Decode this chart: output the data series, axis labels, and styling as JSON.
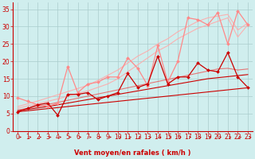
{
  "background_color": "#d0eeee",
  "grid_color": "#aacccc",
  "xlabel": "Vent moyen/en rafales ( km/h )",
  "xlabel_color": "#cc0000",
  "xlabel_fontsize": 6,
  "tick_color": "#cc0000",
  "tick_fontsize": 5.5,
  "xlim": [
    -0.5,
    23.5
  ],
  "ylim": [
    0,
    37
  ],
  "yticks": [
    0,
    5,
    10,
    15,
    20,
    25,
    30,
    35
  ],
  "xticks": [
    0,
    1,
    2,
    3,
    4,
    5,
    6,
    7,
    8,
    9,
    10,
    11,
    12,
    13,
    14,
    15,
    16,
    17,
    18,
    19,
    20,
    21,
    22,
    23
  ],
  "series": [
    {
      "x": [
        0,
        1,
        2,
        3,
        4,
        5,
        6,
        7,
        8,
        9,
        10,
        11,
        12,
        13,
        14,
        15,
        16,
        17,
        18,
        19,
        20,
        21,
        22,
        23
      ],
      "y": [
        5.5,
        5.8,
        6.1,
        6.4,
        6.7,
        7.0,
        7.3,
        7.6,
        7.9,
        8.2,
        8.5,
        8.8,
        9.1,
        9.4,
        9.7,
        10.0,
        10.3,
        10.6,
        10.9,
        11.2,
        11.5,
        11.8,
        12.1,
        12.4
      ],
      "color": "#cc0000",
      "linewidth": 0.8,
      "marker": null,
      "alpha": 1.0
    },
    {
      "x": [
        0,
        1,
        2,
        3,
        4,
        5,
        6,
        7,
        8,
        9,
        10,
        11,
        12,
        13,
        14,
        15,
        16,
        17,
        18,
        19,
        20,
        21,
        22,
        23
      ],
      "y": [
        5.8,
        6.2,
        6.6,
        7.0,
        7.5,
        8.0,
        8.5,
        9.0,
        9.5,
        10.0,
        10.5,
        11.0,
        11.5,
        12.0,
        12.5,
        13.0,
        13.5,
        14.0,
        14.5,
        15.0,
        15.3,
        15.6,
        15.9,
        16.2
      ],
      "color": "#cc0000",
      "linewidth": 0.8,
      "marker": null,
      "alpha": 1.0
    },
    {
      "x": [
        0,
        1,
        2,
        3,
        4,
        5,
        6,
        7,
        8,
        9,
        10,
        11,
        12,
        13,
        14,
        15,
        16,
        17,
        18,
        19,
        20,
        21,
        22,
        23
      ],
      "y": [
        6.0,
        6.5,
        7.0,
        7.6,
        8.2,
        8.8,
        9.4,
        10.0,
        10.6,
        11.2,
        11.8,
        12.4,
        13.0,
        13.6,
        14.2,
        14.8,
        15.4,
        16.0,
        16.6,
        17.2,
        17.8,
        18.0,
        17.5,
        17.8
      ],
      "color": "#ee4444",
      "linewidth": 0.8,
      "marker": null,
      "alpha": 0.7
    },
    {
      "x": [
        0,
        1,
        2,
        3,
        4,
        5,
        6,
        7,
        8,
        9,
        10,
        11,
        12,
        13,
        14,
        15,
        16,
        17,
        18,
        19,
        20,
        21,
        22,
        23
      ],
      "y": [
        6.5,
        7.2,
        7.8,
        8.5,
        9.2,
        10.0,
        10.8,
        11.5,
        12.5,
        13.5,
        15.0,
        17.0,
        19.0,
        21.0,
        23.0,
        24.5,
        26.5,
        28.0,
        29.5,
        30.5,
        31.5,
        32.5,
        27.0,
        30.5
      ],
      "color": "#ffaaaa",
      "linewidth": 0.8,
      "marker": null,
      "alpha": 0.9
    },
    {
      "x": [
        0,
        1,
        2,
        3,
        4,
        5,
        6,
        7,
        8,
        9,
        10,
        11,
        12,
        13,
        14,
        15,
        16,
        17,
        18,
        19,
        20,
        21,
        22,
        23
      ],
      "y": [
        7.0,
        7.8,
        8.6,
        9.5,
        10.4,
        11.3,
        12.2,
        13.1,
        14.5,
        16.0,
        17.5,
        19.5,
        21.5,
        23.0,
        25.0,
        26.5,
        28.5,
        30.0,
        31.5,
        32.5,
        33.0,
        33.5,
        29.0,
        31.0
      ],
      "color": "#ffaaaa",
      "linewidth": 0.8,
      "marker": null,
      "alpha": 0.9
    },
    {
      "x": [
        0,
        1,
        2,
        3,
        4,
        5,
        6,
        7,
        8,
        9,
        10,
        11,
        12,
        13,
        14,
        15,
        16,
        17,
        18,
        19,
        20,
        21,
        22,
        23
      ],
      "y": [
        9.5,
        8.5,
        7.5,
        7.0,
        8.0,
        18.5,
        11.0,
        13.5,
        14.0,
        15.5,
        15.5,
        21.0,
        18.0,
        13.0,
        24.5,
        14.0,
        20.0,
        32.5,
        32.0,
        30.5,
        34.0,
        25.0,
        34.5,
        30.5
      ],
      "color": "#ff8888",
      "linewidth": 0.9,
      "marker": "D",
      "markersize": 2.0,
      "alpha": 1.0
    },
    {
      "x": [
        0,
        1,
        2,
        3,
        4,
        5,
        6,
        7,
        8,
        9,
        10,
        11,
        12,
        13,
        14,
        15,
        16,
        17,
        18,
        19,
        20,
        21,
        22,
        23
      ],
      "y": [
        5.5,
        6.5,
        7.5,
        8.0,
        4.5,
        10.5,
        10.5,
        11.0,
        9.0,
        10.0,
        11.0,
        16.5,
        12.5,
        13.5,
        21.5,
        13.5,
        15.5,
        15.5,
        19.5,
        17.5,
        17.0,
        22.5,
        15.5,
        12.5
      ],
      "color": "#cc0000",
      "linewidth": 0.9,
      "marker": "D",
      "markersize": 2.0,
      "alpha": 1.0
    }
  ]
}
